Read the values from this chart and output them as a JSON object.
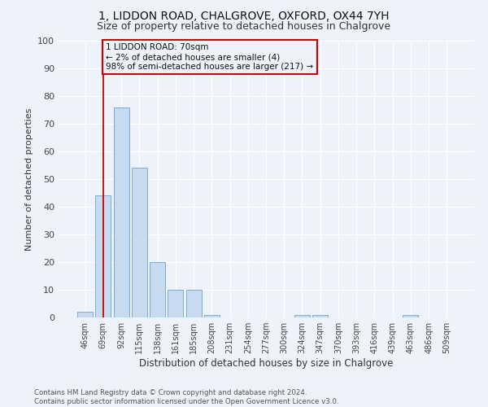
{
  "title": "1, LIDDON ROAD, CHALGROVE, OXFORD, OX44 7YH",
  "subtitle": "Size of property relative to detached houses in Chalgrove",
  "xlabel": "Distribution of detached houses by size in Chalgrove",
  "ylabel": "Number of detached properties",
  "bar_labels": [
    "46sqm",
    "69sqm",
    "92sqm",
    "115sqm",
    "138sqm",
    "161sqm",
    "185sqm",
    "208sqm",
    "231sqm",
    "254sqm",
    "277sqm",
    "300sqm",
    "324sqm",
    "347sqm",
    "370sqm",
    "393sqm",
    "416sqm",
    "439sqm",
    "463sqm",
    "486sqm",
    "509sqm"
  ],
  "bar_values": [
    2,
    44,
    76,
    54,
    20,
    10,
    10,
    1,
    0,
    0,
    0,
    0,
    1,
    1,
    0,
    0,
    0,
    0,
    1,
    0,
    0
  ],
  "bar_color": "#c8daf0",
  "bar_edge_color": "#7aadd4",
  "vline_x": 1,
  "vline_color": "#cc0000",
  "annotation_text": "1 LIDDON ROAD: 70sqm\n← 2% of detached houses are smaller (4)\n98% of semi-detached houses are larger (217) →",
  "annotation_box_color": "#cc0000",
  "ylim": [
    0,
    100
  ],
  "yticks": [
    0,
    10,
    20,
    30,
    40,
    50,
    60,
    70,
    80,
    90,
    100
  ],
  "background_color": "#edf2fb",
  "grid_color": "#ffffff",
  "footer": "Contains HM Land Registry data © Crown copyright and database right 2024.\nContains public sector information licensed under the Open Government Licence v3.0.",
  "title_fontsize": 10,
  "subtitle_fontsize": 9,
  "ylabel_fontsize": 8,
  "xlabel_fontsize": 8.5
}
